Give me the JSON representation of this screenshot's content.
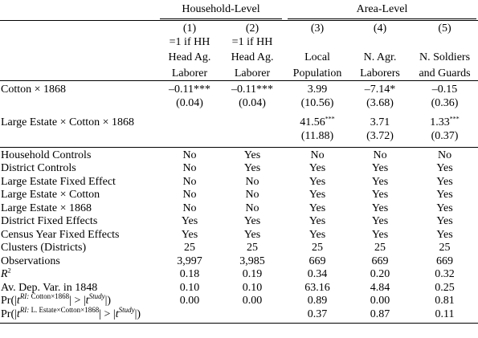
{
  "header": {
    "groups": [
      "Household-Level",
      "Area-Level"
    ],
    "col_numbers": [
      "(1)",
      "(2)",
      "(3)",
      "(4)",
      "(5)"
    ],
    "col_desc_line1": [
      "=1 if HH",
      "=1 if HH",
      "",
      "",
      ""
    ],
    "col_desc_line2": [
      "Head Ag.",
      "Head Ag.",
      "Local",
      "N. Agr.",
      "N. Soldiers"
    ],
    "col_desc_line3": [
      "Laborer",
      "Laborer",
      "Population",
      "Laborers",
      "and Guards"
    ]
  },
  "coef_rows": [
    {
      "label": "Cotton × 1868",
      "coef": [
        "–0.11",
        "–0.11",
        "3.99",
        "–7.14",
        "–0.15"
      ],
      "stars": [
        "***",
        "***",
        "",
        "*",
        ""
      ],
      "se": [
        "(0.04)",
        "(0.04)",
        "(10.56)",
        "(3.68)",
        "(0.36)"
      ]
    },
    {
      "label": "Large Estate × Cotton × 1868",
      "coef": [
        "",
        "",
        "41.56",
        "3.71",
        "1.33"
      ],
      "stars": [
        "",
        "",
        "***",
        "",
        "***"
      ],
      "se": [
        "",
        "",
        "(11.88)",
        "(3.72)",
        "(0.37)"
      ]
    }
  ],
  "control_rows": [
    {
      "label": "Household Controls",
      "values": [
        "No",
        "Yes",
        "No",
        "No",
        "No"
      ]
    },
    {
      "label": "District Controls",
      "values": [
        "No",
        "Yes",
        "Yes",
        "Yes",
        "Yes"
      ]
    },
    {
      "label": "Large Estate Fixed Effect",
      "values": [
        "No",
        "No",
        "Yes",
        "Yes",
        "Yes"
      ]
    },
    {
      "label": "Large Estate × Cotton",
      "values": [
        "No",
        "No",
        "Yes",
        "Yes",
        "Yes"
      ]
    },
    {
      "label": "Large Estate × 1868",
      "values": [
        "No",
        "No",
        "Yes",
        "Yes",
        "Yes"
      ]
    },
    {
      "label": "District Fixed Effects",
      "values": [
        "Yes",
        "Yes",
        "Yes",
        "Yes",
        "Yes"
      ]
    },
    {
      "label": "Census Year Fixed Effects",
      "values": [
        "Yes",
        "Yes",
        "Yes",
        "Yes",
        "Yes"
      ]
    },
    {
      "label": "Clusters (Districts)",
      "values": [
        "25",
        "25",
        "25",
        "25",
        "25"
      ]
    },
    {
      "label": "Observations",
      "values": [
        "3,997",
        "3,985",
        "669",
        "669",
        "669"
      ]
    }
  ],
  "r2_row": {
    "label_main": "R",
    "label_sup": "2",
    "values": [
      "0.18",
      "0.19",
      "0.34",
      "0.20",
      "0.32"
    ]
  },
  "dep_var_row": {
    "label": "Av. Dep. Var. in 1848",
    "values": [
      "0.10",
      "0.10",
      "63.16",
      "4.84",
      "0.25"
    ]
  },
  "ri_rows": [
    {
      "pre": "Pr(|",
      "t": "t",
      "sup_ri": "RI:",
      "sup_term": " Cotton×1868",
      "mid": "| > |",
      "t2": "t",
      "sup_study": "Study",
      "post": "|)",
      "values": [
        "0.00",
        "0.00",
        "0.89",
        "0.00",
        "0.81"
      ]
    },
    {
      "pre": "Pr(|",
      "t": "t",
      "sup_ri": "RI:",
      "sup_term": " L. Estate×Cotton×1868",
      "mid": "| > |",
      "t2": "t",
      "sup_study": "Study",
      "post": "|)",
      "values": [
        "",
        "",
        "0.37",
        "0.87",
        "0.11"
      ]
    }
  ]
}
